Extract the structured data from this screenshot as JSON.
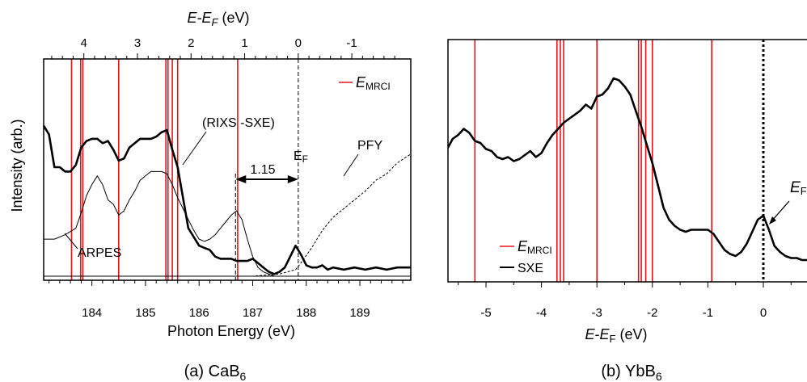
{
  "colors": {
    "emrci": "#e8141c",
    "curve": "#000000",
    "frame": "#000000"
  },
  "panel_a": {
    "caption_text": "(a) CaB",
    "caption_sub": "6",
    "top_axis_label": {
      "main": "E-E",
      "sub": "F",
      "unit": " (eV)"
    },
    "legend": {
      "main": "E",
      "sub": "MRCI"
    },
    "annotations": {
      "rixs": "(RIXS -SXE)",
      "pfy": "PFY",
      "arpes": "ARPES",
      "gap": "1.15",
      "ef": {
        "main": "E",
        "sub": "F"
      }
    }
  },
  "panel_b": {
    "caption_text": "(b) YbB",
    "caption_sub": "6",
    "legend": [
      {
        "main": "E",
        "sub": "MRCI"
      },
      {
        "main": "SXE",
        "sub": ""
      }
    ],
    "annotations": {
      "ef": {
        "main": "E",
        "sub": "F"
      }
    }
  },
  "chart_data": [
    {
      "type": "line",
      "title": "(a) CaB6",
      "xlabel": "Photon Energy (eV)",
      "ylabel": "Intensity (arb.)",
      "x2label": "E-EF (eV)",
      "xlim": [
        183.1,
        189.95
      ],
      "ylim": [
        0,
        1
      ],
      "xticks": [
        184,
        185,
        186,
        187,
        188,
        189
      ],
      "x2ticks": [
        4,
        3,
        2,
        1,
        0,
        -1
      ],
      "x2_relation": "E-EF = 187.85 - photon energy",
      "fermi_level_photon_energy": 187.85,
      "gap_annotation_ev": 1.15,
      "emrci_lines_x": [
        183.62,
        183.79,
        183.83,
        184.5,
        185.38,
        185.42,
        185.5,
        185.6,
        186.72
      ],
      "dashed_lines_x": [
        186.68,
        187.85
      ],
      "series": [
        {
          "name": "(RIXS -SXE)",
          "style": "thick",
          "x": [
            183.1,
            183.2,
            183.3,
            183.4,
            183.5,
            183.6,
            183.7,
            183.8,
            183.9,
            184.0,
            184.1,
            184.2,
            184.3,
            184.4,
            184.5,
            184.6,
            184.7,
            184.8,
            184.9,
            185.0,
            185.1,
            185.2,
            185.3,
            185.4,
            185.5,
            185.6,
            185.7,
            185.8,
            185.9,
            186.0,
            186.1,
            186.2,
            186.3,
            186.4,
            186.5,
            186.6,
            186.7,
            186.8,
            186.9,
            187.0,
            187.1,
            187.2,
            187.3,
            187.4,
            187.5,
            187.6,
            187.7,
            187.8,
            187.9,
            188.0,
            188.1,
            188.2,
            188.3,
            188.4,
            188.5,
            188.7,
            188.9,
            189.1,
            189.3,
            189.5,
            189.7,
            189.95
          ],
          "values": [
            0.69,
            0.65,
            0.5,
            0.5,
            0.48,
            0.48,
            0.51,
            0.59,
            0.62,
            0.63,
            0.63,
            0.61,
            0.62,
            0.58,
            0.53,
            0.54,
            0.59,
            0.61,
            0.63,
            0.63,
            0.63,
            0.64,
            0.66,
            0.67,
            0.58,
            0.5,
            0.36,
            0.22,
            0.18,
            0.14,
            0.13,
            0.12,
            0.09,
            0.08,
            0.08,
            0.08,
            0.07,
            0.07,
            0.07,
            0.08,
            0.06,
            0.04,
            0.02,
            0.01,
            0.02,
            0.04,
            0.09,
            0.14,
            0.1,
            0.05,
            0.04,
            0.04,
            0.05,
            0.03,
            0.04,
            0.03,
            0.04,
            0.03,
            0.04,
            0.03,
            0.04,
            0.04
          ]
        },
        {
          "name": "ARPES",
          "style": "thin",
          "x": [
            183.1,
            183.3,
            183.5,
            183.7,
            183.8,
            183.9,
            184.0,
            184.1,
            184.2,
            184.3,
            184.4,
            184.5,
            184.6,
            184.7,
            184.8,
            184.9,
            185.0,
            185.1,
            185.2,
            185.3,
            185.4,
            185.5,
            185.6,
            185.7,
            185.8,
            185.9,
            186.0,
            186.1,
            186.2,
            186.3,
            186.4,
            186.5,
            186.6,
            186.7,
            186.8,
            186.9,
            187.0,
            187.1,
            187.2,
            187.3,
            187.4,
            187.5,
            187.6,
            187.7
          ],
          "values": [
            0.17,
            0.17,
            0.19,
            0.22,
            0.29,
            0.37,
            0.42,
            0.46,
            0.42,
            0.35,
            0.33,
            0.28,
            0.3,
            0.35,
            0.39,
            0.44,
            0.46,
            0.48,
            0.48,
            0.48,
            0.47,
            0.42,
            0.36,
            0.31,
            0.26,
            0.21,
            0.17,
            0.16,
            0.17,
            0.19,
            0.22,
            0.25,
            0.28,
            0.3,
            0.26,
            0.17,
            0.09,
            0.04,
            0.02,
            0.01,
            0.0,
            0.0,
            0.0,
            0.0
          ]
        },
        {
          "name": "PFY",
          "style": "dashed",
          "x": [
            186.0,
            187.0,
            187.5,
            187.8,
            187.9,
            188.1,
            188.3,
            188.5,
            188.7,
            188.9,
            189.1,
            189.3,
            189.5,
            189.7,
            189.95
          ],
          "values": [
            0.0,
            0.0,
            0.01,
            0.03,
            0.06,
            0.13,
            0.21,
            0.27,
            0.31,
            0.35,
            0.39,
            0.44,
            0.47,
            0.52,
            0.56
          ]
        }
      ]
    },
    {
      "type": "line",
      "title": "(b) YbB6",
      "xlabel": "E-EF (eV)",
      "xlim": [
        -5.95,
        0.95
      ],
      "ylim": [
        0,
        1
      ],
      "xticks": [
        -5,
        -4,
        -3,
        -2,
        -1,
        0
      ],
      "emrci_lines_x": [
        -5.2,
        -3.72,
        -3.66,
        -3.6,
        -3.0,
        -2.25,
        -2.2,
        -2.12,
        -2.0,
        -0.93
      ],
      "dashed_lines_x": [
        0
      ],
      "series": [
        {
          "name": "SXE",
          "x": [
            -5.95,
            -5.8,
            -5.7,
            -5.6,
            -5.5,
            -5.4,
            -5.3,
            -5.2,
            -5.1,
            -5.0,
            -4.9,
            -4.8,
            -4.7,
            -4.6,
            -4.5,
            -4.4,
            -4.3,
            -4.2,
            -4.1,
            -4.0,
            -3.9,
            -3.8,
            -3.7,
            -3.6,
            -3.5,
            -3.4,
            -3.3,
            -3.2,
            -3.1,
            -3.0,
            -2.9,
            -2.8,
            -2.7,
            -2.6,
            -2.5,
            -2.4,
            -2.3,
            -2.2,
            -2.1,
            -2.0,
            -1.9,
            -1.8,
            -1.7,
            -1.6,
            -1.5,
            -1.4,
            -1.3,
            -1.2,
            -1.1,
            -1.0,
            -0.9,
            -0.8,
            -0.7,
            -0.6,
            -0.5,
            -0.4,
            -0.3,
            -0.2,
            -0.1,
            0.0,
            0.1,
            0.2,
            0.3,
            0.4,
            0.5,
            0.6,
            0.7,
            0.8,
            0.95
          ],
          "values": [
            0.54,
            0.56,
            0.57,
            0.62,
            0.64,
            0.67,
            0.65,
            0.61,
            0.6,
            0.57,
            0.56,
            0.53,
            0.52,
            0.53,
            0.51,
            0.52,
            0.54,
            0.56,
            0.53,
            0.55,
            0.6,
            0.64,
            0.67,
            0.7,
            0.72,
            0.74,
            0.76,
            0.79,
            0.77,
            0.83,
            0.84,
            0.87,
            0.92,
            0.91,
            0.88,
            0.84,
            0.76,
            0.68,
            0.59,
            0.5,
            0.39,
            0.28,
            0.22,
            0.19,
            0.17,
            0.16,
            0.17,
            0.17,
            0.17,
            0.17,
            0.15,
            0.11,
            0.07,
            0.05,
            0.04,
            0.06,
            0.1,
            0.16,
            0.22,
            0.24,
            0.17,
            0.09,
            0.06,
            0.04,
            0.03,
            0.03,
            0.02,
            0.02,
            0.02
          ]
        }
      ]
    }
  ]
}
